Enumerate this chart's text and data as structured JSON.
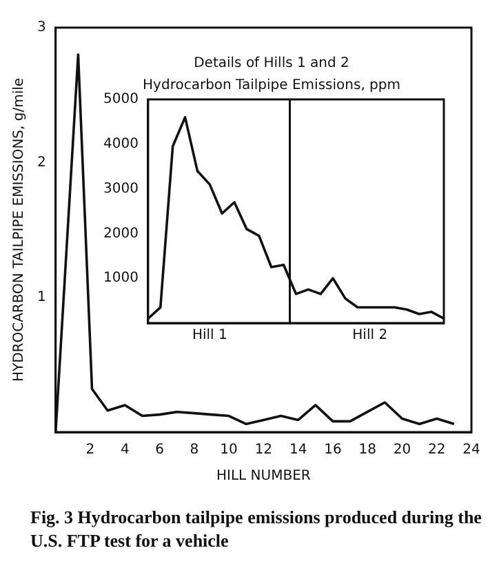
{
  "chart_data": [
    {
      "type": "line",
      "xlabel": "HILL NUMBER",
      "ylabel": "HYDROCARBON TAILPIPE EMISSIONS, g/mile",
      "x": [
        0,
        1.3,
        2.1,
        3,
        4,
        5,
        6,
        7,
        8,
        9,
        10,
        11,
        12,
        13,
        14,
        15,
        16,
        17,
        18,
        19,
        20,
        21,
        22,
        23
      ],
      "series": [
        {
          "color": "#111111",
          "values": [
            0,
            2.8,
            0.32,
            0.16,
            0.2,
            0.12,
            0.13,
            0.15,
            0.14,
            0.13,
            0.12,
            0.06,
            0.09,
            0.12,
            0.09,
            0.2,
            0.08,
            0.08,
            0.15,
            0.22,
            0.1,
            0.06,
            0.1,
            0.06
          ]
        }
      ],
      "xlim": [
        0,
        24
      ],
      "xticks": [
        2,
        4,
        6,
        8,
        10,
        12,
        14,
        16,
        18,
        20,
        22,
        24
      ],
      "ylim": [
        0,
        3
      ],
      "yticks": [
        1,
        2,
        3
      ],
      "grid": false,
      "legend": false,
      "marker": "none",
      "line_style": "solid",
      "annotations": [
        "Fig. 3 Hydrocarbon tailpipe emissions produced during the U.S. FTP test for a vehicle"
      ]
    },
    {
      "type": "line",
      "title": "Details of Hills 1 and 2",
      "subtitle": "Hydrocarbon Tailpipe Emissions, ppm",
      "categories": [
        null,
        null,
        null,
        null,
        null,
        "Hill 1",
        null,
        null,
        null,
        null,
        null,
        null,
        null,
        null,
        null,
        null,
        null,
        null,
        "Hill 2",
        null,
        null,
        null,
        null,
        null,
        null
      ],
      "series": [
        {
          "color": "#111111",
          "values": [
            100,
            350,
            3950,
            4600,
            3400,
            3100,
            2450,
            2700,
            2100,
            1950,
            1250,
            1300,
            650,
            750,
            650,
            1000,
            550,
            350,
            350,
            350,
            350,
            300,
            200,
            250,
            100
          ]
        }
      ],
      "ylim": [
        0,
        5000
      ],
      "yticks": [
        1000,
        2000,
        3000,
        4000,
        5000
      ],
      "grid": false,
      "legend": false,
      "marker": "none",
      "line_style": "solid"
    }
  ]
}
